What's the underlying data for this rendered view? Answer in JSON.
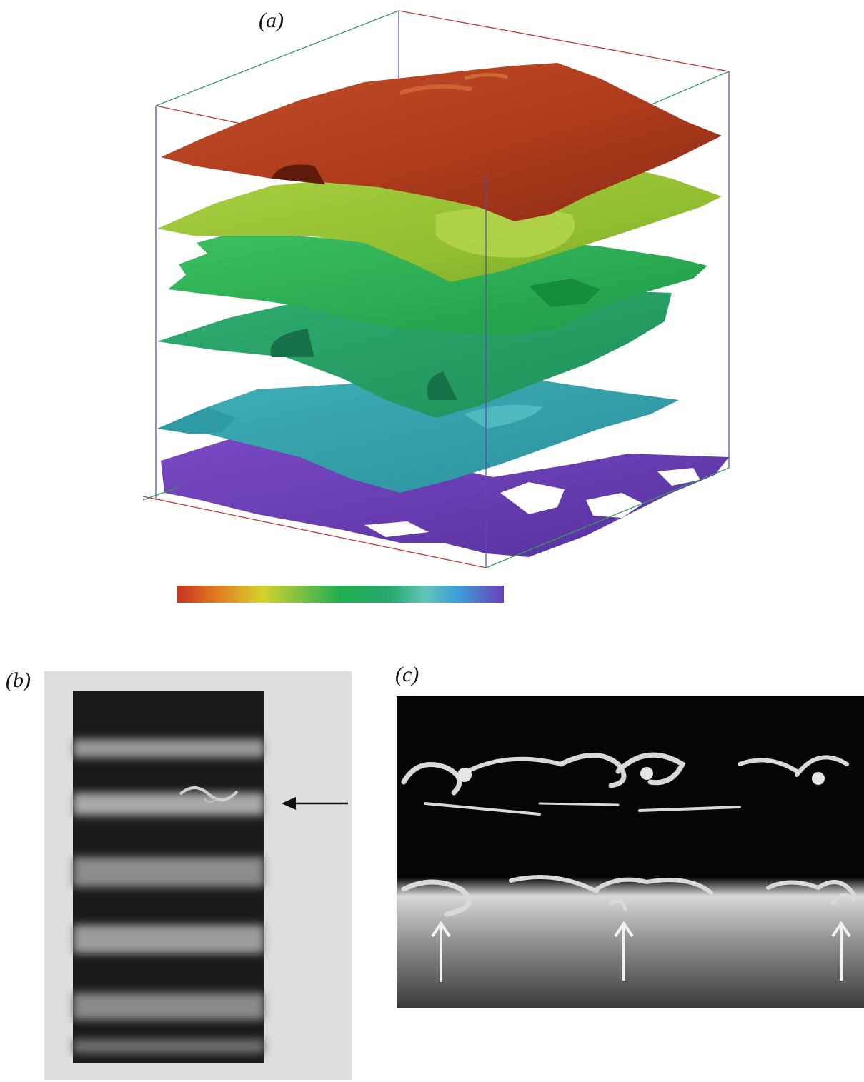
{
  "figure": {
    "panels": [
      {
        "id": "a",
        "label": "(a)"
      },
      {
        "id": "b",
        "label": "(b)"
      },
      {
        "id": "c",
        "label": "(c)"
      }
    ],
    "panel_a": {
      "layer_colors": [
        "#b8401f",
        "#9ec83a",
        "#2fb55a",
        "#23a46a",
        "#3aa6b4",
        "#6a3fb6"
      ],
      "colorbar_gradient": [
        "#c9341f",
        "#e07a22",
        "#d7d22b",
        "#7bc043",
        "#1fae4f",
        "#27a86d",
        "#63c4b9",
        "#3d9ed8",
        "#6a3fb8"
      ]
    }
  }
}
